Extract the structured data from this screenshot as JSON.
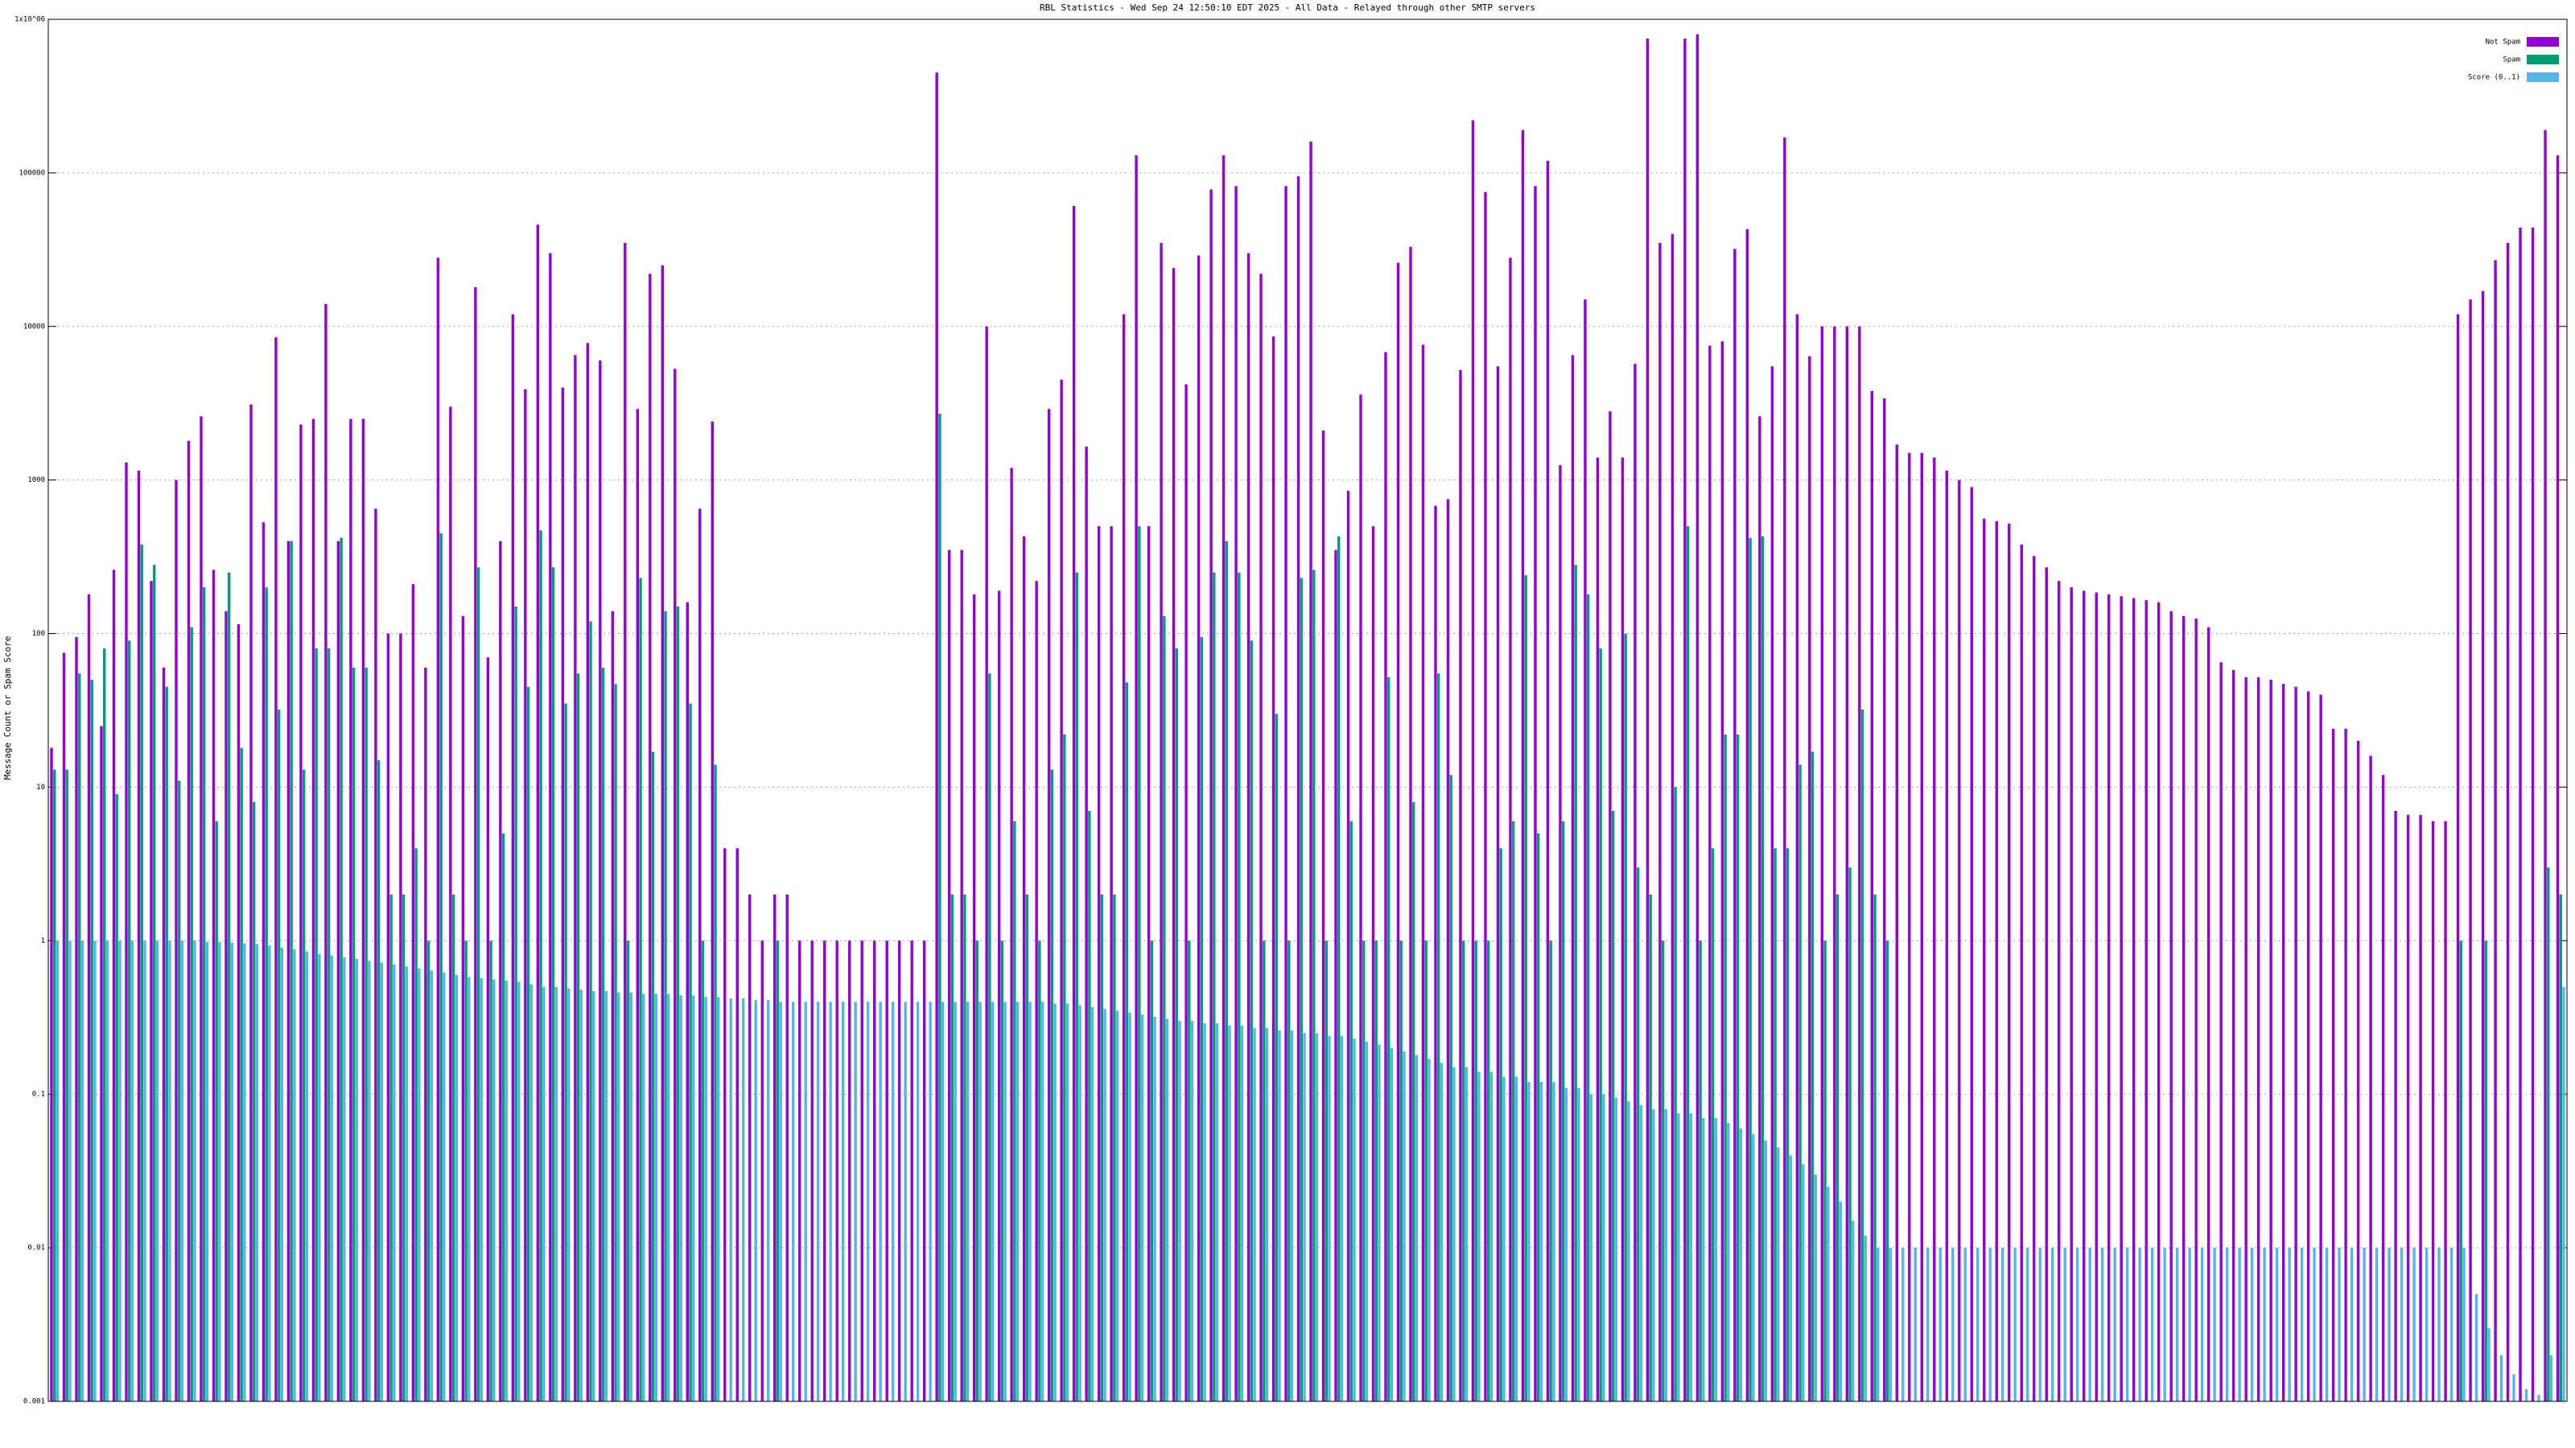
{
  "chart_data": {
    "type": "bar",
    "title": "RBL Statistics - Wed Sep 24 12:50:10 EDT 2025 - All Data - Relayed through other SMTP servers",
    "y_label": "Message Count or Spam Score",
    "log_scale": true,
    "grid": true,
    "legend_position": "top-right",
    "ylim": [
      0.001,
      1000000
    ],
    "yticks": [
      0.001,
      0.01,
      0.1,
      1,
      10,
      100,
      1000,
      10000,
      100000,
      {
        "value": 1000000,
        "label": "1x10^06"
      }
    ],
    "categories": [
      null,
      null,
      null,
      null,
      null,
      null,
      null,
      null,
      null,
      null,
      null,
      null,
      null,
      null,
      null,
      null,
      null,
      null,
      null,
      null,
      null,
      null,
      null,
      null,
      null,
      null,
      null,
      null,
      null,
      null,
      null,
      null,
      null,
      null,
      null,
      null,
      null,
      null,
      null,
      null,
      null,
      null,
      null,
      null,
      null,
      null,
      null,
      null,
      null,
      null,
      null,
      null,
      null,
      null,
      null,
      null,
      null,
      null,
      null,
      null,
      null,
      null,
      null,
      null,
      null,
      null,
      null,
      null,
      null,
      null,
      null,
      null,
      null,
      null,
      null,
      null,
      null,
      null,
      null,
      null,
      null,
      null,
      null,
      null,
      null,
      null,
      null,
      null,
      null,
      null,
      null,
      null,
      null,
      null,
      null,
      null,
      null,
      null,
      null,
      null,
      null,
      null,
      null,
      null,
      null,
      null,
      null,
      null,
      null,
      null,
      null,
      null,
      null,
      null,
      null,
      null,
      null,
      null,
      null,
      null,
      null,
      null,
      null,
      null,
      null,
      null,
      null,
      null,
      null,
      null,
      null,
      null,
      null,
      null,
      null,
      null,
      null,
      null,
      null,
      null,
      null,
      null,
      null,
      null,
      null,
      null,
      null,
      null,
      null,
      null,
      null,
      null,
      null,
      null,
      null,
      null,
      null,
      null,
      null,
      null,
      null,
      null,
      null,
      null,
      null,
      null,
      null,
      null,
      null,
      null,
      null,
      null,
      null,
      null,
      null,
      null,
      null,
      null,
      null,
      null,
      null,
      null,
      null,
      null,
      null,
      null,
      null,
      null,
      null,
      null,
      null,
      null,
      null,
      null,
      null,
      null,
      null,
      null,
      null,
      null,
      null,
      null
    ],
    "series": [
      {
        "name": "Not Spam",
        "color": "#9400d3",
        "values": [
          18,
          75,
          95,
          180,
          25,
          260,
          1300,
          1150,
          220,
          60,
          1000,
          1800,
          2600,
          260,
          140,
          115,
          3100,
          530,
          8500,
          400,
          2300,
          2500,
          14000,
          400,
          2500,
          2500,
          650,
          100,
          100,
          210,
          60,
          28000,
          3000,
          130,
          18000,
          70,
          400,
          12000,
          3900,
          46000,
          30000,
          4000,
          6500,
          7800,
          6000,
          140,
          35000,
          2900,
          22000,
          25000,
          5300,
          160,
          650,
          2400,
          4,
          4,
          2,
          1,
          2,
          2,
          1,
          1,
          1,
          1,
          1,
          1,
          1,
          1,
          1,
          1,
          1,
          450000,
          350,
          350,
          180,
          10000,
          190,
          1200,
          430,
          220,
          2900,
          4500,
          61000,
          1650,
          500,
          500,
          12000,
          130000,
          500,
          35000,
          24000,
          4200,
          29000,
          78000,
          130000,
          82000,
          30000,
          22000,
          8600,
          82000,
          95000,
          160000,
          2100,
          350,
          850,
          3600,
          500,
          6800,
          26000,
          33000,
          7600,
          680,
          750,
          5200,
          220000,
          75000,
          5500,
          28000,
          190000,
          82000,
          120000,
          1250,
          6500,
          15000,
          1400,
          2800,
          1400,
          5700,
          750000,
          35000,
          40000,
          750000,
          800000,
          7500,
          8000,
          32000,
          43000,
          2600,
          5500,
          170000,
          12000,
          6400,
          10000,
          10000,
          10000,
          10000,
          3800,
          3400,
          1700,
          1500,
          1500,
          1400,
          1150,
          1000,
          900,
          560,
          540,
          520,
          380,
          320,
          270,
          220,
          200,
          190,
          185,
          180,
          175,
          170,
          165,
          160,
          140,
          130,
          125,
          110,
          65,
          58,
          52,
          52,
          50,
          47,
          45,
          42,
          40,
          24,
          24,
          20,
          16,
          12,
          7,
          6.6,
          6.6,
          6,
          6,
          12000,
          15000,
          17000,
          27000,
          35000,
          44000,
          44000,
          190000,
          130000
        ]
      },
      {
        "name": "Spam",
        "color": "#009e73",
        "values": [
          13,
          13,
          55,
          50,
          80,
          9,
          90,
          380,
          280,
          45,
          11,
          110,
          200,
          6,
          250,
          18,
          8,
          200,
          32,
          400,
          13,
          80,
          80,
          420,
          60,
          60,
          15,
          2,
          2,
          4,
          1,
          450,
          2,
          1,
          270,
          1,
          5,
          150,
          45,
          470,
          270,
          35,
          55,
          120,
          60,
          47,
          1,
          230,
          17,
          140,
          150,
          35,
          1,
          14,
          null,
          null,
          null,
          null,
          1,
          null,
          null,
          null,
          null,
          null,
          null,
          null,
          null,
          null,
          null,
          null,
          null,
          2700,
          2,
          2,
          1,
          55,
          1,
          6,
          2,
          1,
          13,
          22,
          250,
          7,
          2,
          2,
          48,
          500,
          1,
          130,
          80,
          1,
          95,
          250,
          400,
          250,
          90,
          1,
          30,
          1,
          230,
          260,
          1,
          430,
          6,
          1,
          1,
          52,
          1,
          8,
          1,
          55,
          12,
          1,
          1,
          1,
          4,
          6,
          240,
          5,
          1,
          6,
          280,
          180,
          80,
          7,
          100,
          3,
          2,
          1,
          10,
          500,
          1,
          4,
          22,
          22,
          420,
          430,
          4,
          4,
          14,
          17,
          1,
          2,
          3,
          32,
          2,
          1,
          null,
          null,
          null,
          null,
          null,
          null,
          null,
          null,
          null,
          null,
          null,
          null,
          null,
          null,
          null,
          null,
          null,
          null,
          null,
          null,
          null,
          null,
          null,
          null,
          null,
          null,
          null,
          null,
          null,
          null,
          null,
          null,
          null,
          null,
          null,
          null,
          null,
          null,
          null,
          null,
          null,
          null,
          null,
          null,
          null,
          1,
          null,
          1,
          null,
          null,
          null,
          null,
          3,
          2
        ]
      },
      {
        "name": "Score (0..1)",
        "color": "#56b4e9",
        "values": [
          1,
          1,
          1,
          1,
          1,
          1,
          1,
          1,
          1,
          1,
          1,
          1,
          0.98,
          0.98,
          0.97,
          0.96,
          0.95,
          0.93,
          0.9,
          0.88,
          0.85,
          0.82,
          0.8,
          0.78,
          0.76,
          0.74,
          0.72,
          0.7,
          0.68,
          0.66,
          0.64,
          0.62,
          0.6,
          0.58,
          0.57,
          0.56,
          0.55,
          0.54,
          0.52,
          0.5,
          0.5,
          0.49,
          0.48,
          0.47,
          0.47,
          0.46,
          0.46,
          0.45,
          0.45,
          0.45,
          0.44,
          0.44,
          0.43,
          0.43,
          0.42,
          0.42,
          0.41,
          0.41,
          0.4,
          0.4,
          0.4,
          0.4,
          0.4,
          0.4,
          0.4,
          0.4,
          0.4,
          0.4,
          0.4,
          0.4,
          0.4,
          0.4,
          0.4,
          0.4,
          0.4,
          0.4,
          0.4,
          0.4,
          0.4,
          0.4,
          0.39,
          0.39,
          0.38,
          0.37,
          0.36,
          0.35,
          0.34,
          0.33,
          0.32,
          0.31,
          0.3,
          0.3,
          0.29,
          0.29,
          0.28,
          0.28,
          0.27,
          0.27,
          0.26,
          0.26,
          0.25,
          0.25,
          0.24,
          0.24,
          0.23,
          0.22,
          0.21,
          0.2,
          0.19,
          0.18,
          0.17,
          0.16,
          0.15,
          0.15,
          0.14,
          0.14,
          0.13,
          0.13,
          0.12,
          0.12,
          0.12,
          0.11,
          0.11,
          0.1,
          0.1,
          0.095,
          0.09,
          0.085,
          0.08,
          0.08,
          0.075,
          0.075,
          0.07,
          0.07,
          0.065,
          0.06,
          0.055,
          0.05,
          0.045,
          0.04,
          0.035,
          0.03,
          0.025,
          0.02,
          0.015,
          0.012,
          0.01,
          0.01,
          0.01,
          0.01,
          0.01,
          0.01,
          0.01,
          0.01,
          0.01,
          0.01,
          0.01,
          0.01,
          0.01,
          0.01,
          0.01,
          0.01,
          0.01,
          0.01,
          0.01,
          0.01,
          0.01,
          0.01,
          0.01,
          0.01,
          0.01,
          0.01,
          0.01,
          0.01,
          0.01,
          0.01,
          0.01,
          0.01,
          0.01,
          0.01,
          0.01,
          0.01,
          0.01,
          0.01,
          0.01,
          0.01,
          0.01,
          0.01,
          0.01,
          0.01,
          0.01,
          0.01,
          0.01,
          0.01,
          0.005,
          0.003,
          0.002,
          0.0015,
          0.0012,
          0.0011,
          0.002,
          0.5
        ]
      }
    ]
  }
}
